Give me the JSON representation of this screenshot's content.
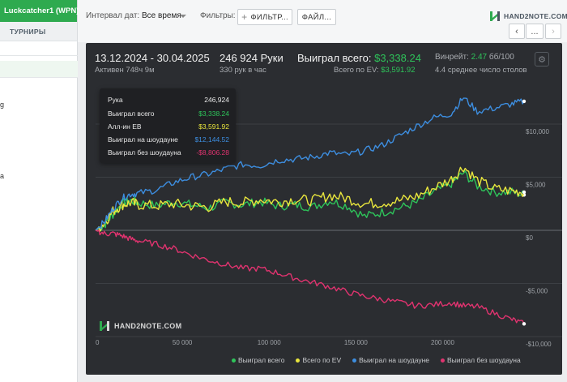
{
  "sidebar": {
    "account_label": "Luckcatcher1 (WPN)",
    "tab_label": "ТУРНИРЫ",
    "fragments": [
      "g",
      "а"
    ]
  },
  "topbar": {
    "date_range_label": "Интервал дат:",
    "date_range_value": "Все время",
    "filters_label": "Фильтры:",
    "filter_button": "ФИЛЬТР...",
    "file_button": "ФАЙЛ...",
    "brand": "HAND2NOTE.COM",
    "nav_more": "...",
    "nav_prev_icon": "‹",
    "nav_next_icon": "›"
  },
  "summary": {
    "date_range": "13.12.2024 - 30.04.2025",
    "active_time": "Активен 748ч 9м",
    "hands": "246 924 Руки",
    "hands_per_hour": "330 рук в час",
    "won_total_label": "Выиграл всего:",
    "won_total_value": "$3,338.24",
    "won_ev_label": "Всего по EV:",
    "won_ev_value": "$3,591.92",
    "winrate_label": "Винрейт:",
    "winrate_value": "2.47",
    "winrate_unit": "бб/100",
    "avg_tables": "4.4 среднее число столов"
  },
  "tooltip": {
    "rows": [
      {
        "label": "Рука",
        "value": "246,924",
        "color": "#e8e8e8"
      },
      {
        "label": "Выиграл всего",
        "value": "$3,338.24",
        "color": "#2ec45a"
      },
      {
        "label": "Алл-ин EB",
        "value": "$3,591.92",
        "color": "#e9e63d"
      },
      {
        "label": "Выиграл на шоудауне",
        "value": "$12,144.52",
        "color": "#3d8ee0"
      },
      {
        "label": "Выиграл без шоудауна",
        "value": "-$8,806.28",
        "color": "#e0336f"
      }
    ]
  },
  "watermark": "HAND2NOTE.COM",
  "legend": [
    {
      "label": "Выиграл всего",
      "color": "#2ec45a"
    },
    {
      "label": "Всего по EV",
      "color": "#e9e63d"
    },
    {
      "label": "Выиграл на шоудауне",
      "color": "#3d8ee0"
    },
    {
      "label": "Выиграл без шоудауна",
      "color": "#e0336f"
    }
  ],
  "chart_data": {
    "type": "line",
    "x_ticks": [
      "0",
      "50 000",
      "100 000",
      "150 000",
      "200 000"
    ],
    "y_ticks": [
      "$10,000",
      "$5,000",
      "$0",
      "-$5,000",
      "-$10,000"
    ],
    "xlim": [
      0,
      246924
    ],
    "ylim": [
      -10000,
      12000
    ],
    "grid": true,
    "series": [
      {
        "name": "Выиграл всего",
        "color": "#2ec45a",
        "x": [
          0,
          5000,
          10000,
          15000,
          20000,
          25000,
          35000,
          45000,
          55000,
          65000,
          75000,
          85000,
          95000,
          105000,
          115000,
          125000,
          135000,
          145000,
          155000,
          165000,
          175000,
          185000,
          195000,
          205000,
          212000,
          220000,
          230000,
          240000,
          246924
        ],
        "y": [
          0,
          500,
          1500,
          2500,
          2800,
          2600,
          2300,
          2700,
          2400,
          2100,
          2600,
          2400,
          2700,
          2300,
          2400,
          2200,
          2800,
          2300,
          1300,
          1700,
          2100,
          2600,
          3600,
          4400,
          5400,
          4200,
          3600,
          3600,
          3338.24
        ]
      },
      {
        "name": "Всего по EV",
        "color": "#e9e63d",
        "x": [
          0,
          5000,
          10000,
          15000,
          20000,
          25000,
          35000,
          45000,
          55000,
          65000,
          75000,
          85000,
          95000,
          105000,
          115000,
          125000,
          135000,
          145000,
          155000,
          165000,
          175000,
          185000,
          195000,
          205000,
          212000,
          220000,
          230000,
          240000,
          246924
        ],
        "y": [
          0,
          700,
          1800,
          2400,
          2600,
          2400,
          2300,
          2500,
          2300,
          2200,
          2700,
          2600,
          2900,
          2700,
          2900,
          2800,
          3300,
          3000,
          2500,
          2600,
          2800,
          3200,
          4000,
          4800,
          6000,
          4700,
          3900,
          3700,
          3591.92
        ]
      },
      {
        "name": "Выиграл на шоудауне",
        "color": "#3d8ee0",
        "x": [
          0,
          5000,
          10000,
          15000,
          20000,
          25000,
          35000,
          45000,
          55000,
          65000,
          75000,
          85000,
          95000,
          105000,
          115000,
          125000,
          135000,
          145000,
          155000,
          165000,
          175000,
          185000,
          195000,
          205000,
          212000,
          220000,
          230000,
          240000,
          246924
        ],
        "y": [
          0,
          800,
          2000,
          3000,
          3400,
          3500,
          3800,
          4500,
          5000,
          5300,
          5800,
          6200,
          6100,
          6600,
          6700,
          6900,
          7300,
          7100,
          7500,
          8000,
          8900,
          9800,
          10600,
          11000,
          12500,
          11200,
          11500,
          11900,
          12144.52
        ]
      },
      {
        "name": "Выиграл без шоудауна",
        "color": "#e0336f",
        "x": [
          0,
          5000,
          10000,
          15000,
          20000,
          25000,
          35000,
          45000,
          55000,
          65000,
          75000,
          85000,
          95000,
          105000,
          115000,
          125000,
          135000,
          145000,
          155000,
          165000,
          175000,
          185000,
          195000,
          205000,
          212000,
          220000,
          230000,
          240000,
          246924
        ],
        "y": [
          0,
          -300,
          -300,
          -500,
          -800,
          -1000,
          -1300,
          -1700,
          -2300,
          -2800,
          -3200,
          -3600,
          -3600,
          -4000,
          -4500,
          -4900,
          -5300,
          -5800,
          -6200,
          -6500,
          -6800,
          -7100,
          -7000,
          -6800,
          -7100,
          -7200,
          -7800,
          -8400,
          -8806.28
        ]
      }
    ]
  }
}
